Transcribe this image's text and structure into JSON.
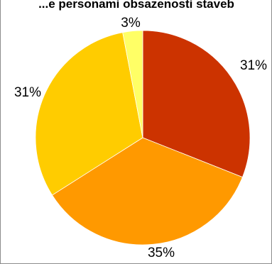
{
  "chart_data": {
    "type": "pie",
    "title": "...e personami obsazenosti staveb",
    "categories": [
      "",
      "",
      "",
      ""
    ],
    "values": [
      31,
      35,
      31,
      3
    ],
    "labels": [
      "31%",
      "35%",
      "31%",
      "3%"
    ],
    "colors": [
      "#CC3300",
      "#FF9900",
      "#FFCC00",
      "#FFFF66"
    ],
    "start_angle_deg": 0,
    "direction": "clockwise",
    "legend": "none"
  }
}
